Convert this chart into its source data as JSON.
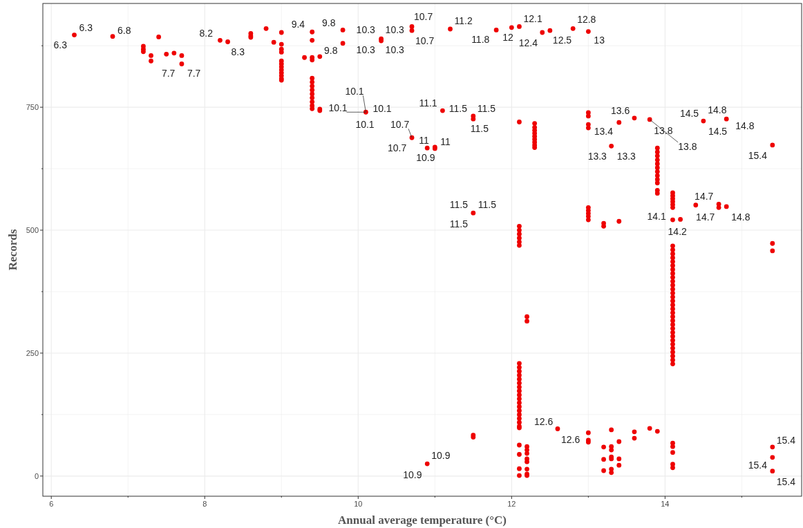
{
  "chart_data": {
    "type": "scatter",
    "xlabel": "Annual average temperature (°C)",
    "ylabel": "Records",
    "xlim": [
      5.89,
      15.78
    ],
    "ylim": [
      -41,
      961
    ],
    "xticks": [
      6,
      {
        "value": 7,
        "label": null
      },
      8,
      {
        "value": 9,
        "label": null
      },
      10,
      {
        "value": 11,
        "label": null
      },
      12,
      {
        "value": 13,
        "label": null
      },
      14,
      {
        "value": 15,
        "label": null
      }
    ],
    "yticks": [
      0,
      {
        "value": 125,
        "label": null
      },
      250,
      {
        "value": 375,
        "label": null
      },
      500,
      {
        "value": 625,
        "label": null
      },
      750,
      {
        "value": 875,
        "label": null
      }
    ],
    "grid": true,
    "marker": "circle",
    "series": [
      {
        "color": "#ee0000",
        "x": [
          6.3,
          6.8,
          7.2,
          7.2,
          7.2,
          7.3,
          7.3,
          7.4,
          7.5,
          7.6,
          7.7,
          7.7,
          8.2,
          8.3,
          8.6,
          8.6,
          8.6,
          8.8,
          8.9,
          9.0,
          9.0,
          9.0,
          9.0,
          9.0,
          9.0,
          9.0,
          9.0,
          9.0,
          9.0,
          9.0,
          9.0,
          9.3,
          9.4,
          9.4,
          9.4,
          9.4,
          9.4,
          9.4,
          9.4,
          9.4,
          9.4,
          9.4,
          9.4,
          9.4,
          9.4,
          9.5,
          9.5,
          9.5,
          9.8,
          9.8,
          10.3,
          10.3,
          10.7,
          10.7,
          11.2,
          11.8,
          12.0,
          12.1,
          12.4,
          12.5,
          12.8,
          13.0,
          10.1,
          10.7,
          10.9,
          11.0,
          11.0,
          11.1,
          11.5,
          11.5,
          12.1,
          12.3,
          12.3,
          12.3,
          12.3,
          12.3,
          12.3,
          12.3,
          12.3,
          12.3,
          13.0,
          13.0,
          13.0,
          13.0,
          13.3,
          13.4,
          13.6,
          13.8,
          13.9,
          13.9,
          13.9,
          13.9,
          13.9,
          13.9,
          13.9,
          13.9,
          13.9,
          13.9,
          13.9,
          13.9,
          14.5,
          14.8,
          15.4,
          11.5,
          12.1,
          12.1,
          12.1,
          12.1,
          12.1,
          12.1,
          12.2,
          12.2,
          13.0,
          13.0,
          13.0,
          13.0,
          13.0,
          13.2,
          13.2,
          13.4,
          14.1,
          14.1,
          14.1,
          14.1,
          14.1,
          14.1,
          14.1,
          14.2,
          14.4,
          14.7,
          14.7,
          14.8,
          15.4,
          15.4,
          14.1,
          14.1,
          14.1,
          14.1,
          14.1,
          14.1,
          14.1,
          14.1,
          14.1,
          14.1,
          14.1,
          14.1,
          14.1,
          14.1,
          14.1,
          14.1,
          14.1,
          14.1,
          14.1,
          14.1,
          14.1,
          14.1,
          14.1,
          14.1,
          14.1,
          14.1,
          14.1,
          14.1,
          14.1,
          14.1,
          14.1,
          12.1,
          12.1,
          12.1,
          12.1,
          12.1,
          12.1,
          12.1,
          12.1,
          12.1,
          12.1,
          12.1,
          12.1,
          12.1,
          12.1,
          12.1,
          12.1,
          12.1,
          12.1,
          11.5,
          11.5,
          10.9,
          12.1,
          12.1,
          12.1,
          12.1,
          12.2,
          12.2,
          12.2,
          12.2,
          12.2,
          12.2,
          12.2,
          12.2,
          12.6,
          13.0,
          13.0,
          13.0,
          13.2,
          13.2,
          13.2,
          13.3,
          13.3,
          13.3,
          13.3,
          13.3,
          13.3,
          13.3,
          13.4,
          13.4,
          13.4,
          13.6,
          13.6,
          13.8,
          13.9,
          14.1,
          14.1,
          14.1,
          14.1,
          14.1,
          15.4,
          15.4,
          15.4
        ],
        "values": [
          897,
          894,
          874,
          868,
          863,
          855,
          844,
          893,
          858,
          860,
          855,
          838,
          886,
          883,
          900,
          895,
          892,
          910,
          882,
          902,
          878,
          868,
          862,
          844,
          838,
          832,
          826,
          820,
          814,
          808,
          805,
          851,
          903,
          886,
          851,
          846,
          809,
          801,
          793,
          785,
          777,
          769,
          761,
          753,
          747,
          853,
          746,
          743,
          907,
          880,
          889,
          885,
          914,
          906,
          909,
          907,
          912,
          914,
          902,
          906,
          910,
          904,
          740,
          688,
          667,
          669,
          666,
          743,
          732,
          726,
          720,
          717,
          709,
          703,
          697,
          691,
          685,
          679,
          673,
          668,
          739,
          732,
          715,
          708,
          671,
          719,
          728,
          725,
          667,
          659,
          651,
          643,
          635,
          627,
          619,
          611,
          603,
          596,
          581,
          575,
          722,
          726,
          673,
          535,
          508,
          500,
          492,
          484,
          476,
          469,
          324,
          315,
          546,
          540,
          534,
          528,
          521,
          514,
          508,
          518,
          576,
          570,
          564,
          558,
          552,
          546,
          521,
          522,
          551,
          553,
          546,
          548,
          473,
          458,
          468,
          460,
          452,
          444,
          436,
          428,
          420,
          412,
          404,
          396,
          388,
          380,
          372,
          364,
          356,
          348,
          340,
          332,
          324,
          316,
          308,
          300,
          292,
          284,
          276,
          268,
          260,
          252,
          244,
          236,
          228,
          229,
          221,
          213,
          205,
          197,
          189,
          181,
          173,
          165,
          157,
          149,
          141,
          133,
          125,
          117,
          109,
          101,
          98,
          83,
          79,
          25,
          63,
          44,
          15,
          1,
          60,
          53,
          46,
          35,
          29,
          14,
          4,
          1,
          96,
          88,
          73,
          69,
          59,
          34,
          11,
          94,
          60,
          53,
          39,
          35,
          14,
          7,
          70,
          35,
          22,
          90,
          77,
          97,
          91,
          67,
          60,
          48,
          24,
          17,
          59,
          38,
          10
        ]
      }
    ],
    "annotations": [
      {
        "text": "6.3",
        "x": 6.3,
        "y": 897
      },
      {
        "text": "6.3",
        "x": 6.3,
        "y": 897
      },
      {
        "text": "6.8",
        "x": 6.8,
        "y": 894
      },
      {
        "text": "7.7",
        "x": 7.7,
        "y": 838
      },
      {
        "text": "7.7",
        "x": 7.7,
        "y": 838
      },
      {
        "text": "8.2",
        "x": 8.2,
        "y": 886
      },
      {
        "text": "8.3",
        "x": 8.3,
        "y": 883
      },
      {
        "text": "9.4",
        "x": 9.4,
        "y": 903
      },
      {
        "text": "9.8",
        "x": 9.8,
        "y": 907
      },
      {
        "text": "9.8",
        "x": 9.8,
        "y": 880
      },
      {
        "text": "10.3",
        "x": 10.3,
        "y": 889
      },
      {
        "text": "10.3",
        "x": 10.3,
        "y": 889
      },
      {
        "text": "10.3",
        "x": 10.3,
        "y": 889
      },
      {
        "text": "10.3",
        "x": 10.3,
        "y": 889
      },
      {
        "text": "10.7",
        "x": 10.7,
        "y": 914
      },
      {
        "text": "10.7",
        "x": 10.7,
        "y": 906
      },
      {
        "text": "11.2",
        "x": 11.2,
        "y": 909
      },
      {
        "text": "11.8",
        "x": 11.8,
        "y": 907
      },
      {
        "text": "12",
        "x": 12,
        "y": 912
      },
      {
        "text": "12.1",
        "x": 12.1,
        "y": 914
      },
      {
        "text": "12.4",
        "x": 12.4,
        "y": 902
      },
      {
        "text": "12.5",
        "x": 12.5,
        "y": 906
      },
      {
        "text": "12.8",
        "x": 12.8,
        "y": 910
      },
      {
        "text": "13",
        "x": 13,
        "y": 904
      },
      {
        "text": "10.1",
        "x": 10.1,
        "y": 740
      },
      {
        "text": "10.1",
        "x": 10.1,
        "y": 740
      },
      {
        "text": "10.1",
        "x": 10.1,
        "y": 740
      },
      {
        "text": "10.1",
        "x": 10.1,
        "y": 740
      },
      {
        "text": "11.1",
        "x": 11.1,
        "y": 743
      },
      {
        "text": "11.5",
        "x": 11.5,
        "y": 732
      },
      {
        "text": "11.5",
        "x": 11.5,
        "y": 732
      },
      {
        "text": "11.5",
        "x": 11.5,
        "y": 726
      },
      {
        "text": "10.7",
        "x": 10.7,
        "y": 688
      },
      {
        "text": "10.7",
        "x": 10.7,
        "y": 688
      },
      {
        "text": "11",
        "x": 11,
        "y": 669
      },
      {
        "text": "11",
        "x": 11,
        "y": 669
      },
      {
        "text": "10.9",
        "x": 10.9,
        "y": 667
      },
      {
        "text": "13.6",
        "x": 13.6,
        "y": 728
      },
      {
        "text": "13.4",
        "x": 13.4,
        "y": 719
      },
      {
        "text": "13.3",
        "x": 13.3,
        "y": 671
      },
      {
        "text": "13.3",
        "x": 13.3,
        "y": 671
      },
      {
        "text": "13.8",
        "x": 13.8,
        "y": 725
      },
      {
        "text": "13.8",
        "x": 13.8,
        "y": 725
      },
      {
        "text": "14.5",
        "x": 14.5,
        "y": 722
      },
      {
        "text": "14.5",
        "x": 14.5,
        "y": 722
      },
      {
        "text": "14.8",
        "x": 14.8,
        "y": 726
      },
      {
        "text": "14.8",
        "x": 14.8,
        "y": 726
      },
      {
        "text": "15.4",
        "x": 15.4,
        "y": 673
      },
      {
        "text": "11.5",
        "x": 11.5,
        "y": 535
      },
      {
        "text": "11.5",
        "x": 11.5,
        "y": 535
      },
      {
        "text": "11.5",
        "x": 11.5,
        "y": 535
      },
      {
        "text": "14.1",
        "x": 14.1,
        "y": 521
      },
      {
        "text": "14.2",
        "x": 14.2,
        "y": 522
      },
      {
        "text": "14.7",
        "x": 14.7,
        "y": 553
      },
      {
        "text": "14.7",
        "x": 14.7,
        "y": 546
      },
      {
        "text": "14.8",
        "x": 14.8,
        "y": 548
      },
      {
        "text": "12.6",
        "x": 12.6,
        "y": 96
      },
      {
        "text": "12.6",
        "x": 12.6,
        "y": 96
      },
      {
        "text": "10.9",
        "x": 10.9,
        "y": 25
      },
      {
        "text": "10.9",
        "x": 10.9,
        "y": 25
      },
      {
        "text": "15.4",
        "x": 15.4,
        "y": 59
      },
      {
        "text": "15.4",
        "x": 15.4,
        "y": 38
      },
      {
        "text": "15.4",
        "x": 15.4,
        "y": 10
      }
    ]
  }
}
